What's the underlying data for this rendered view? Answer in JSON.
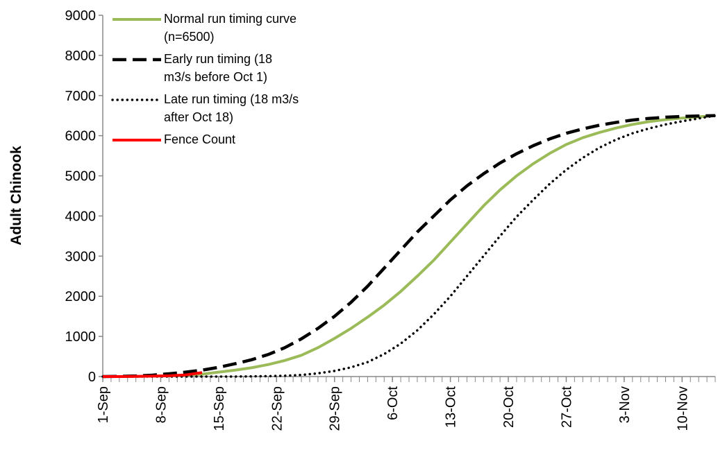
{
  "chart_data": {
    "type": "line",
    "y_label": "Adult Chinook",
    "x": [
      0,
      2,
      4,
      6,
      8,
      10,
      12,
      14,
      16,
      18,
      20,
      22,
      24,
      26,
      28,
      30,
      32,
      34,
      36,
      38,
      40,
      42,
      44,
      46,
      48,
      50,
      52,
      54,
      56,
      58,
      60,
      62,
      64,
      66,
      68,
      70,
      72,
      74
    ],
    "xlim": [
      0,
      74
    ],
    "xticks": [
      {
        "value": 0,
        "label": "1-Sep"
      },
      {
        "value": 7,
        "label": "8-Sep"
      },
      {
        "value": 14,
        "label": "15-Sep"
      },
      {
        "value": 21,
        "label": "22-Sep"
      },
      {
        "value": 28,
        "label": "29-Sep"
      },
      {
        "value": 35,
        "label": "6-Oct"
      },
      {
        "value": 42,
        "label": "13-Oct"
      },
      {
        "value": 49,
        "label": "20-Oct"
      },
      {
        "value": 56,
        "label": "27-Oct"
      },
      {
        "value": 63,
        "label": "3-Nov"
      },
      {
        "value": 70,
        "label": "10-Nov"
      }
    ],
    "ylim": [
      0,
      9000
    ],
    "yticks": [
      0,
      1000,
      2000,
      3000,
      4000,
      5000,
      6000,
      7000,
      8000,
      9000
    ],
    "grid": false,
    "legend": "top-left",
    "series": [
      {
        "name": "Normal run timing curve (n=6500)",
        "color": "#9bbb59",
        "style": "solid",
        "values": [
          0,
          0,
          5,
          10,
          20,
          35,
          60,
          110,
          160,
          220,
          300,
          400,
          530,
          720,
          950,
          1200,
          1480,
          1780,
          2120,
          2500,
          2900,
          3350,
          3800,
          4250,
          4650,
          5000,
          5300,
          5560,
          5780,
          5950,
          6080,
          6190,
          6280,
          6350,
          6400,
          6440,
          6470,
          6500
        ]
      },
      {
        "name": "Early run timing (18 m3/s before Oct 1)",
        "color": "#000000",
        "style": "dashed",
        "values": [
          0,
          5,
          15,
          35,
          70,
          110,
          160,
          230,
          320,
          420,
          550,
          720,
          940,
          1200,
          1500,
          1850,
          2250,
          2700,
          3150,
          3600,
          4000,
          4400,
          4750,
          5050,
          5320,
          5550,
          5750,
          5920,
          6060,
          6170,
          6260,
          6330,
          6390,
          6430,
          6460,
          6480,
          6490,
          6500
        ]
      },
      {
        "name": "Late run timing (18 m3/s after Oct 18)",
        "color": "#000000",
        "style": "dotted",
        "values": [
          0,
          0,
          0,
          0,
          0,
          0,
          0,
          0,
          0,
          5,
          10,
          20,
          40,
          80,
          140,
          230,
          360,
          560,
          820,
          1150,
          1550,
          2000,
          2500,
          3000,
          3500,
          3980,
          4400,
          4800,
          5150,
          5450,
          5700,
          5900,
          6060,
          6180,
          6280,
          6360,
          6430,
          6500
        ]
      },
      {
        "name": "Fence Count",
        "color": "#ff0000",
        "style": "solid",
        "values": [
          0,
          0,
          5,
          10,
          20,
          40,
          100,
          null,
          null,
          null,
          null,
          null,
          null,
          null,
          null,
          null,
          null,
          null,
          null,
          null,
          null,
          null,
          null,
          null,
          null,
          null,
          null,
          null,
          null,
          null,
          null,
          null,
          null,
          null,
          null,
          null,
          null,
          null
        ]
      }
    ]
  }
}
